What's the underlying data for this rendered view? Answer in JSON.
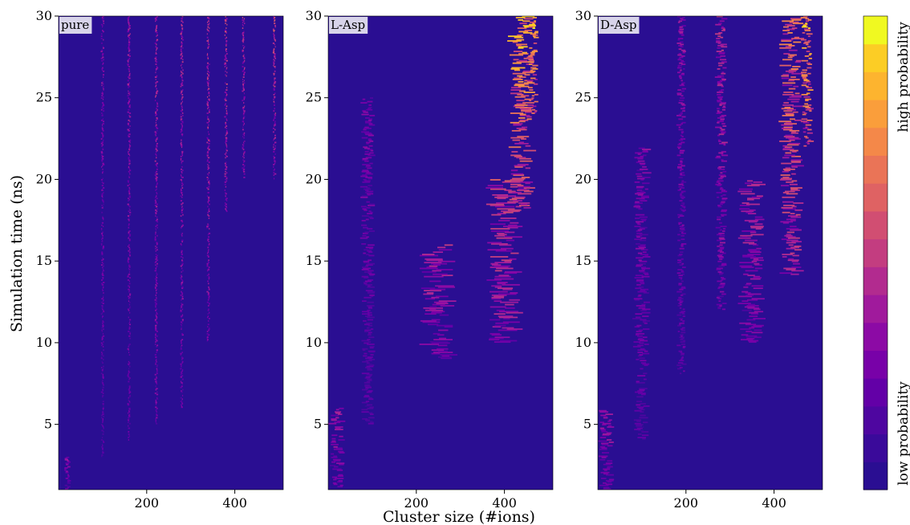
{
  "chart_data": {
    "type": "heatmap",
    "xlabel": "Cluster size (#ions)",
    "ylabel": "Simulation time (ns)",
    "xlim": [
      0,
      510
    ],
    "ylim": [
      1,
      30
    ],
    "x_ticks": [
      200,
      400
    ],
    "y_ticks": [
      5,
      10,
      15,
      20,
      25,
      30
    ],
    "panels": [
      {
        "label": "pure",
        "ridges": [
          {
            "x": 20,
            "t0": 1,
            "t1": 3,
            "w": 6,
            "amp": 0.35
          },
          {
            "x": 100,
            "t0": 3,
            "t1": 30,
            "w": 3,
            "amp": 0.35
          },
          {
            "x": 160,
            "t0": 4,
            "t1": 30,
            "w": 3,
            "amp": 0.4
          },
          {
            "x": 222,
            "t0": 5,
            "t1": 30,
            "w": 3,
            "amp": 0.45
          },
          {
            "x": 280,
            "t0": 6,
            "t1": 30,
            "w": 3,
            "amp": 0.45
          },
          {
            "x": 340,
            "t0": 10,
            "t1": 30,
            "w": 3,
            "amp": 0.5
          },
          {
            "x": 380,
            "t0": 18,
            "t1": 30,
            "w": 3,
            "amp": 0.55
          },
          {
            "x": 420,
            "t0": 20,
            "t1": 30,
            "w": 3,
            "amp": 0.5
          },
          {
            "x": 490,
            "t0": 20,
            "t1": 30,
            "w": 3,
            "amp": 0.55
          }
        ]
      },
      {
        "label": "L-Asp",
        "ridges": [
          {
            "x": 20,
            "t0": 1,
            "t1": 6,
            "w": 14,
            "amp": 0.4
          },
          {
            "x": 90,
            "t0": 5,
            "t1": 25,
            "w": 12,
            "amp": 0.3
          },
          {
            "x": 250,
            "t0": 9,
            "t1": 16,
            "w": 30,
            "amp": 0.45
          },
          {
            "x": 400,
            "t0": 10,
            "t1": 20,
            "w": 30,
            "amp": 0.55
          },
          {
            "x": 440,
            "t0": 18,
            "t1": 30,
            "w": 22,
            "amp": 0.85
          },
          {
            "x": 465,
            "t0": 24,
            "t1": 30,
            "w": 10,
            "amp": 0.95
          }
        ]
      },
      {
        "label": "D-Asp",
        "ridges": [
          {
            "x": 20,
            "t0": 1,
            "t1": 6,
            "w": 14,
            "amp": 0.4
          },
          {
            "x": 100,
            "t0": 4,
            "t1": 22,
            "w": 14,
            "amp": 0.32
          },
          {
            "x": 190,
            "t0": 8,
            "t1": 30,
            "w": 8,
            "amp": 0.35
          },
          {
            "x": 280,
            "t0": 12,
            "t1": 30,
            "w": 10,
            "amp": 0.45
          },
          {
            "x": 350,
            "t0": 10,
            "t1": 20,
            "w": 22,
            "amp": 0.45
          },
          {
            "x": 440,
            "t0": 14,
            "t1": 30,
            "w": 20,
            "amp": 0.7
          },
          {
            "x": 475,
            "t0": 22,
            "t1": 30,
            "w": 10,
            "amp": 0.9
          }
        ]
      }
    ],
    "colorbar": {
      "low_label": "low probability",
      "high_label": "high probability",
      "colors": [
        "#2a0e92",
        "#3a0a9a",
        "#4e06a0",
        "#6300a7",
        "#7801a8",
        "#8c0aa5",
        "#a01a9c",
        "#b22b8f",
        "#c33d80",
        "#d14e72",
        "#df6263",
        "#ea7457",
        "#f48849",
        "#fa9e3b",
        "#fdb42f",
        "#fccd25",
        "#f0f921"
      ],
      "background": "#2a0e92"
    }
  }
}
